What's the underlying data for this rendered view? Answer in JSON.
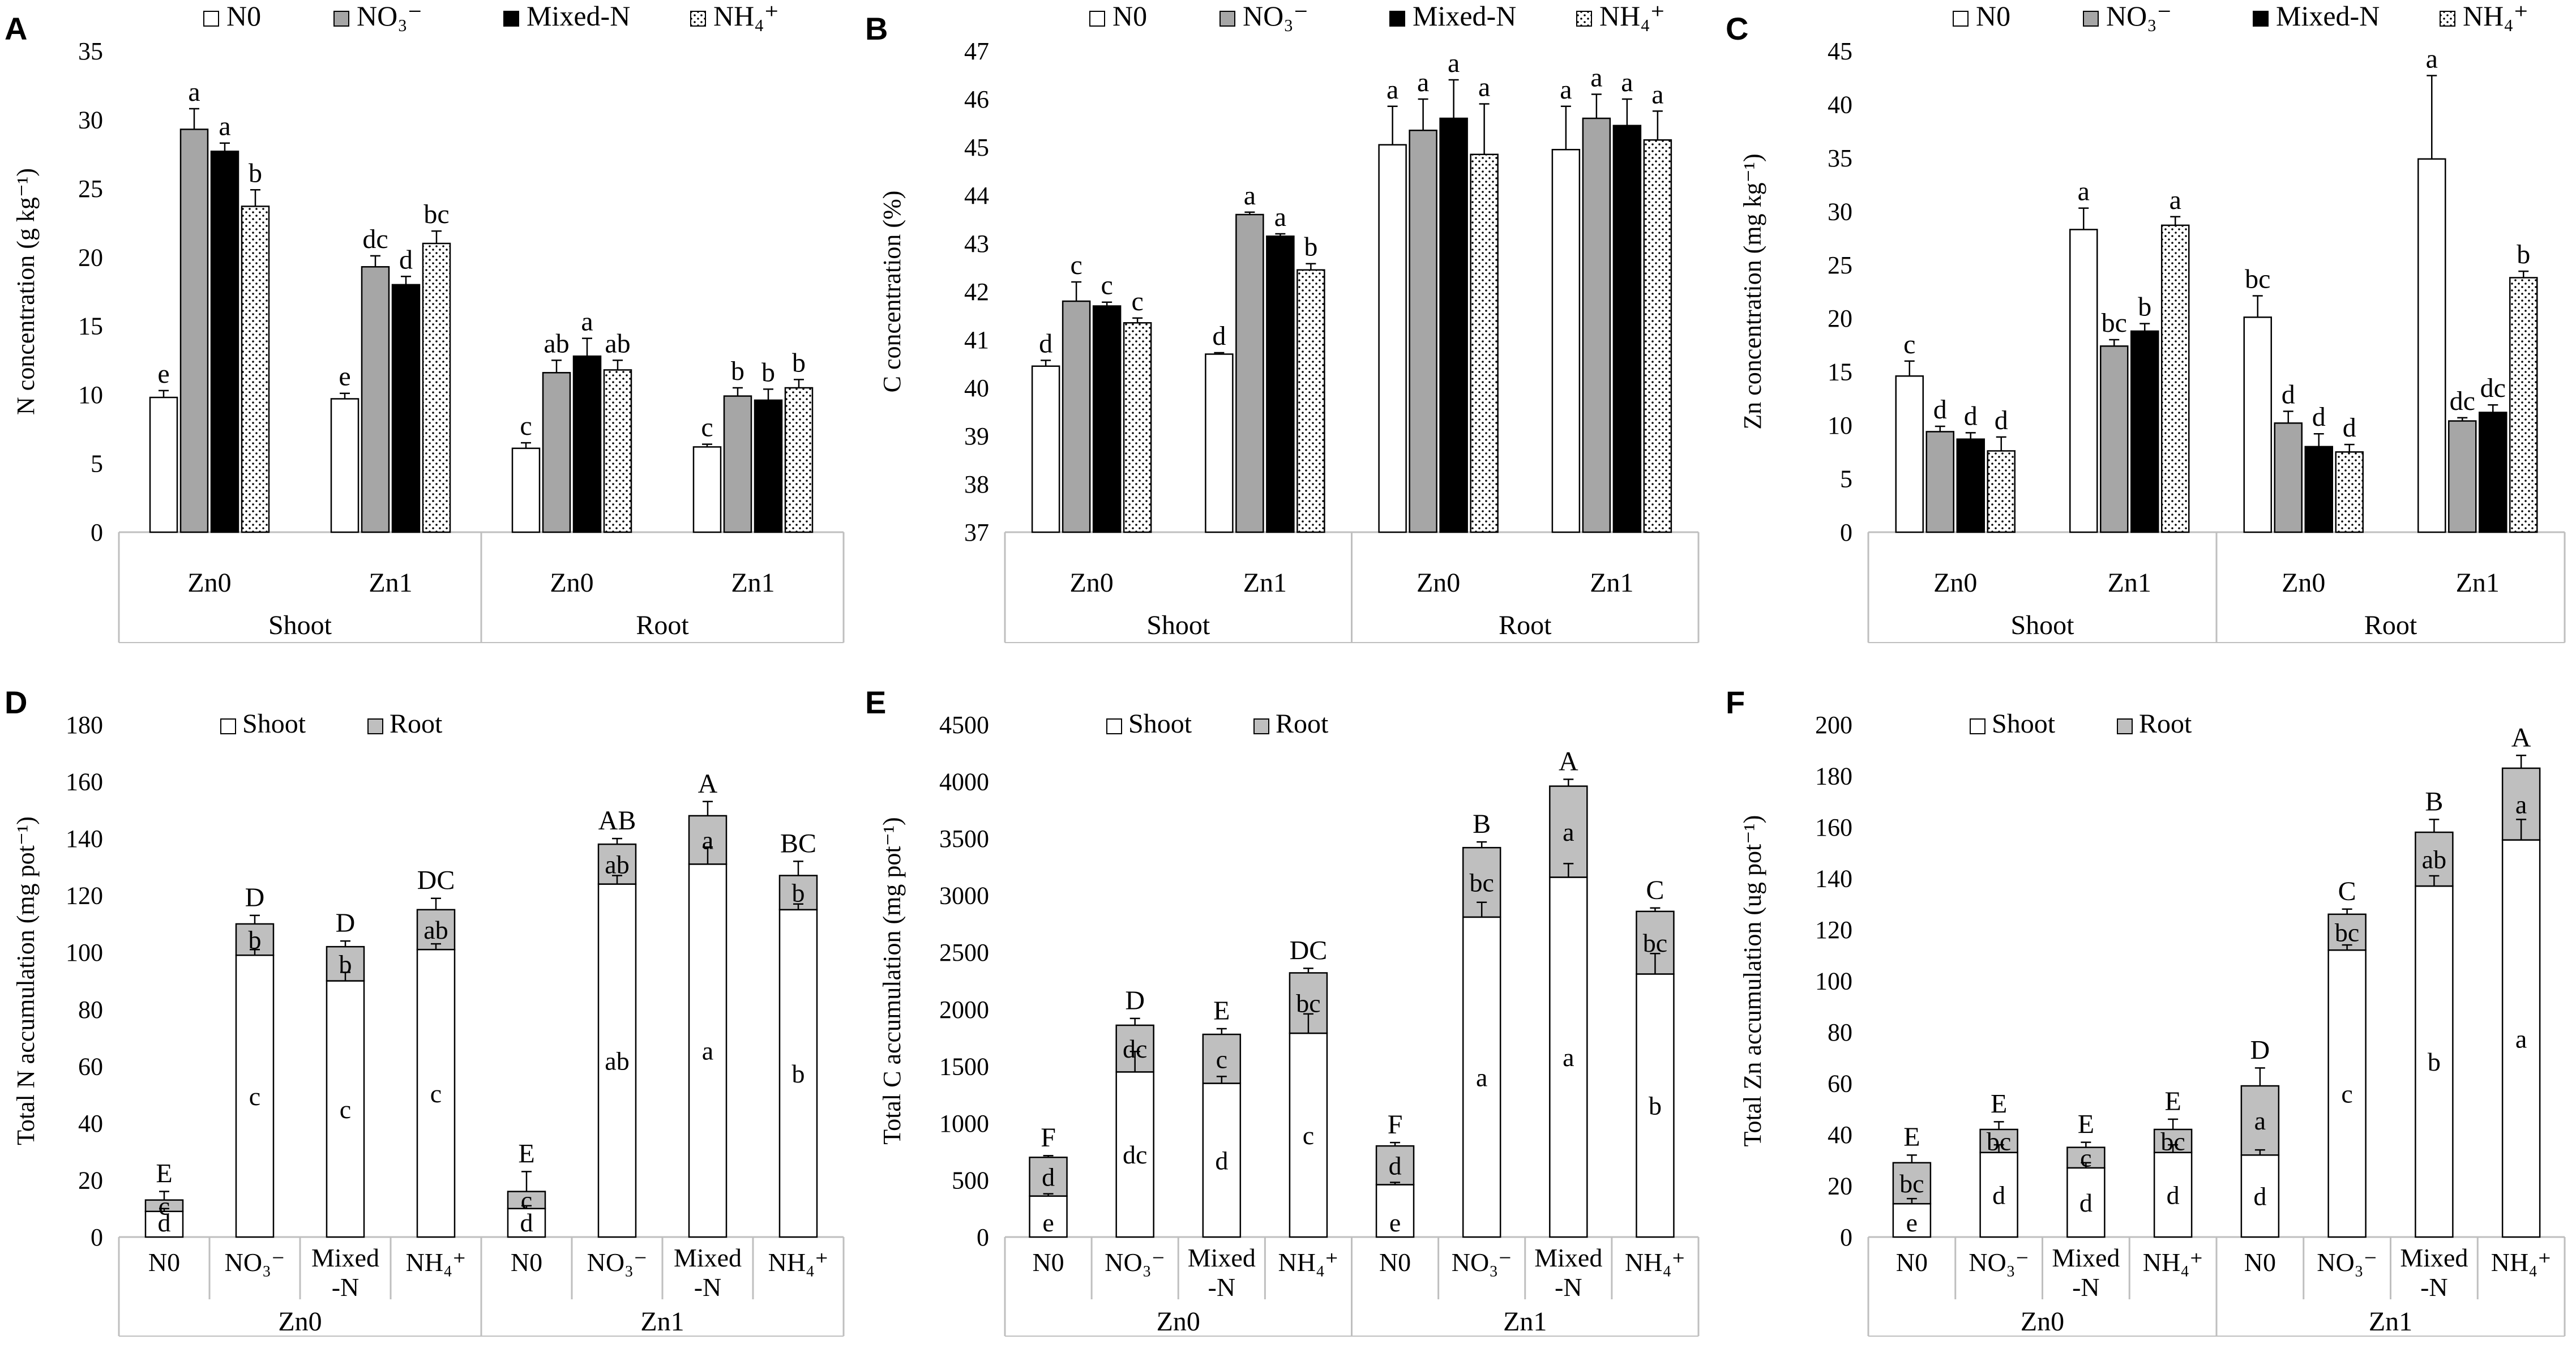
{
  "colors": {
    "N0": "#ffffff",
    "NO3": "#a6a6a6",
    "Mixed-N": "#000000",
    "NH4": "#ffffff",
    "root": "#bfbfbf",
    "shoot": "#ffffff",
    "axis": "#bfbfbf"
  },
  "chart_data": [
    {
      "panel": "A",
      "type": "bar",
      "ylabel": "N concentration (g kg⁻¹)",
      "ylim": [
        0,
        35
      ],
      "yticks": [
        0,
        5,
        10,
        15,
        20,
        25,
        30,
        35
      ],
      "legend": [
        "N0",
        "NO₃⁻",
        "Mixed-N",
        "NH₄⁺"
      ],
      "groups": [
        "Zn0",
        "Zn1",
        "Zn0",
        "Zn1"
      ],
      "tissues": [
        "Shoot",
        "Root"
      ],
      "series": [
        {
          "name": "N0",
          "values": [
            9.8,
            9.7,
            6.1,
            6.2
          ],
          "err": [
            0.5,
            0.4,
            0.4,
            0.2
          ],
          "letters": [
            "e",
            "e",
            "c",
            "c"
          ]
        },
        {
          "name": "NO₃⁻",
          "values": [
            29.3,
            19.3,
            11.6,
            9.9
          ],
          "err": [
            1.5,
            0.8,
            0.9,
            0.6
          ],
          "letters": [
            "a",
            "dc",
            "ab",
            "b"
          ]
        },
        {
          "name": "Mixed-N",
          "values": [
            27.7,
            18.0,
            12.8,
            9.6
          ],
          "err": [
            0.6,
            0.6,
            1.3,
            0.8
          ],
          "letters": [
            "a",
            "d",
            "a",
            "b"
          ]
        },
        {
          "name": "NH₄⁺",
          "values": [
            23.7,
            21.0,
            11.8,
            10.5
          ],
          "err": [
            1.2,
            0.9,
            0.7,
            0.6
          ],
          "letters": [
            "b",
            "bc",
            "ab",
            "b"
          ]
        }
      ]
    },
    {
      "panel": "B",
      "type": "bar",
      "ylabel": "C concentration (%)",
      "ylim": [
        37,
        47
      ],
      "yticks": [
        37,
        38,
        39,
        40,
        41,
        42,
        43,
        44,
        45,
        46,
        47
      ],
      "legend": [
        "N0",
        "NO₃⁻",
        "Mixed-N",
        "NH₄⁺"
      ],
      "groups": [
        "Zn0",
        "Zn1",
        "Zn0",
        "Zn1"
      ],
      "tissues": [
        "Shoot",
        "Root"
      ],
      "series": [
        {
          "name": "N0",
          "values": [
            40.45,
            40.7,
            45.05,
            44.95
          ],
          "err": [
            0.12,
            0.03,
            0.8,
            0.9
          ],
          "letters": [
            "d",
            "d",
            "a",
            "a"
          ]
        },
        {
          "name": "NO₃⁻",
          "values": [
            41.8,
            43.6,
            45.35,
            45.6
          ],
          "err": [
            0.4,
            0.05,
            0.65,
            0.5
          ],
          "letters": [
            "c",
            "a",
            "a",
            "a"
          ]
        },
        {
          "name": "Mixed-N",
          "values": [
            41.7,
            43.15,
            45.6,
            45.45
          ],
          "err": [
            0.08,
            0.05,
            0.8,
            0.55
          ],
          "letters": [
            "c",
            "a",
            "a",
            "a"
          ]
        },
        {
          "name": "NH₄⁺",
          "values": [
            41.35,
            42.45,
            44.85,
            45.15
          ],
          "err": [
            0.1,
            0.13,
            1.05,
            0.6
          ],
          "letters": [
            "c",
            "b",
            "a",
            "a"
          ]
        }
      ]
    },
    {
      "panel": "C",
      "type": "bar",
      "ylabel": "Zn concentration (mg kg⁻¹)",
      "ylim": [
        0,
        45
      ],
      "yticks": [
        0,
        5,
        10,
        15,
        20,
        25,
        30,
        35,
        40,
        45
      ],
      "legend": [
        "N0",
        "NO₃⁻",
        "Mixed-N",
        "NH₄⁺"
      ],
      "groups": [
        "Zn0",
        "Zn1",
        "Zn0",
        "Zn1"
      ],
      "tissues": [
        "Shoot",
        "Root"
      ],
      "series": [
        {
          "name": "N0",
          "values": [
            14.6,
            28.3,
            20.1,
            34.9
          ],
          "err": [
            1.4,
            2.0,
            2.0,
            7.8
          ],
          "letters": [
            "c",
            "a",
            "bc",
            "a"
          ]
        },
        {
          "name": "NO₃⁻",
          "values": [
            9.4,
            17.4,
            10.2,
            10.4
          ],
          "err": [
            0.5,
            0.6,
            1.1,
            0.3
          ],
          "letters": [
            "d",
            "bc",
            "d",
            "dc"
          ]
        },
        {
          "name": "Mixed-N",
          "values": [
            8.7,
            18.8,
            8.0,
            11.2
          ],
          "err": [
            0.6,
            0.7,
            1.2,
            0.7
          ],
          "letters": [
            "d",
            "b",
            "d",
            "dc"
          ]
        },
        {
          "name": "NH₄⁺",
          "values": [
            7.6,
            28.7,
            7.5,
            23.8
          ],
          "err": [
            1.3,
            0.8,
            0.7,
            0.6
          ],
          "letters": [
            "d",
            "a",
            "d",
            "b"
          ]
        }
      ]
    },
    {
      "panel": "D",
      "type": "stacked-bar",
      "ylabel": "Total N accumulation (mg pot⁻¹)",
      "ylim": [
        0,
        180
      ],
      "yticks": [
        0,
        20,
        40,
        60,
        80,
        100,
        120,
        140,
        160,
        180
      ],
      "legend": [
        "Shoot",
        "Root"
      ],
      "categories": [
        "N0",
        "NO₃⁻",
        "Mixed -N",
        "NH₄⁺",
        "N0",
        "NO₃⁻",
        "Mixed -N",
        "NH₄⁺"
      ],
      "zn_groups": [
        "Zn0",
        "Zn1"
      ],
      "shoot": [
        9,
        99,
        90,
        101,
        10,
        124,
        131,
        115
      ],
      "shoot_err": [
        1,
        2,
        3,
        2,
        1,
        3,
        6,
        2
      ],
      "shoot_letters": [
        "d",
        "c",
        "c",
        "c",
        "d",
        "ab",
        "a",
        "b"
      ],
      "total": [
        13,
        110,
        102,
        115,
        16,
        138,
        148,
        127
      ],
      "total_err": [
        3,
        3,
        2,
        4,
        7,
        2,
        5,
        5
      ],
      "root_letters": [
        "c",
        "b",
        "b",
        "ab",
        "c",
        "ab",
        "a",
        "b"
      ],
      "total_letters": [
        "E",
        "D",
        "D",
        "DC",
        "E",
        "AB",
        "A",
        "BC"
      ]
    },
    {
      "panel": "E",
      "type": "stacked-bar",
      "ylabel": "Total C accumulation (mg pot⁻¹)",
      "ylim": [
        0,
        4500
      ],
      "yticks": [
        0,
        500,
        1000,
        1500,
        2000,
        2500,
        3000,
        3500,
        4000,
        4500
      ],
      "legend": [
        "Shoot",
        "Root"
      ],
      "categories": [
        "N0",
        "NO₃⁻",
        "Mixed -N",
        "NH₄⁺",
        "N0",
        "NO₃⁻",
        "Mixed -N",
        "NH₄⁺"
      ],
      "zn_groups": [
        "Zn0",
        "Zn1"
      ],
      "shoot": [
        360,
        1450,
        1350,
        1790,
        460,
        2810,
        3160,
        2310
      ],
      "shoot_err": [
        20,
        180,
        60,
        170,
        20,
        130,
        120,
        180
      ],
      "shoot_letters": [
        "e",
        "dc",
        "d",
        "c",
        "e",
        "a",
        "a",
        "b"
      ],
      "total": [
        700,
        1860,
        1780,
        2320,
        800,
        3420,
        3960,
        2860
      ],
      "total_err": [
        15,
        60,
        50,
        40,
        30,
        50,
        60,
        30
      ],
      "root_letters": [
        "d",
        "dc",
        "c",
        "bc",
        "d",
        "bc",
        "a",
        "bc"
      ],
      "total_letters": [
        "F",
        "D",
        "E",
        "DC",
        "F",
        "B",
        "A",
        "C"
      ]
    },
    {
      "panel": "F",
      "type": "stacked-bar",
      "ylabel": "Total Zn accumulation (ug pot⁻¹)",
      "ylim": [
        0,
        200
      ],
      "yticks": [
        0,
        20,
        40,
        60,
        80,
        100,
        120,
        140,
        160,
        180,
        200
      ],
      "legend": [
        "Shoot",
        "Root"
      ],
      "categories": [
        "N0",
        "NO₃⁻",
        "Mixed -N",
        "NH₄⁺",
        "N0",
        "NO₃⁻",
        "Mixed -N",
        "NH₄⁺"
      ],
      "zn_groups": [
        "Zn0",
        "Zn1"
      ],
      "shoot": [
        13,
        33,
        27,
        33,
        32,
        112,
        137,
        155
      ],
      "shoot_err": [
        2,
        3,
        2,
        3,
        2,
        2,
        4,
        8
      ],
      "shoot_letters": [
        "e",
        "d",
        "d",
        "d",
        "d",
        "c",
        "b",
        "a"
      ],
      "total": [
        29,
        42,
        35,
        42,
        59,
        126,
        158,
        183
      ],
      "total_err": [
        3,
        3,
        2,
        4,
        7,
        2,
        5,
        5
      ],
      "root_letters": [
        "bc",
        "bc",
        "c",
        "bc",
        "a",
        "bc",
        "ab",
        "a"
      ],
      "total_letters": [
        "E",
        "E",
        "E",
        "E",
        "D",
        "C",
        "B",
        "A"
      ]
    }
  ]
}
